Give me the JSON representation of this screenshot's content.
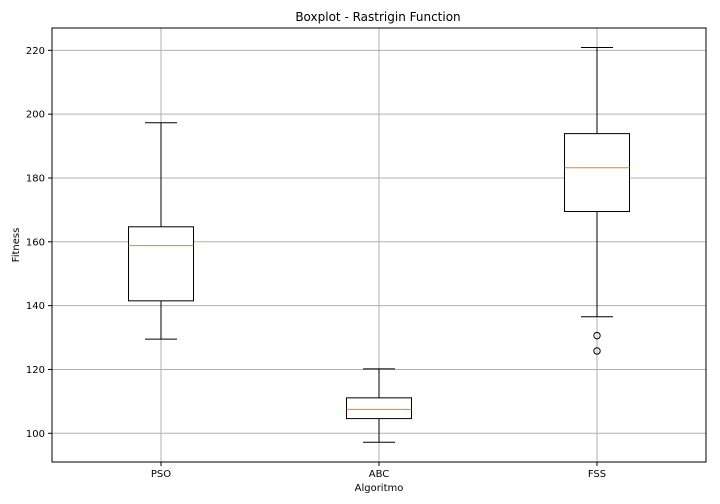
{
  "chart_data": {
    "type": "boxplot",
    "title": "Boxplot - Rastrigin Function",
    "xlabel": "Algoritmo",
    "ylabel": "Fitness",
    "categories": [
      "PSO",
      "ABC",
      "FSS"
    ],
    "ylim": [
      91,
      227
    ],
    "yticks": [
      100,
      120,
      140,
      160,
      180,
      200,
      220
    ],
    "ytick_labels": [
      "100",
      "120",
      "140",
      "160",
      "180",
      "200",
      "220"
    ],
    "grid": true,
    "box_color": "#000000",
    "median_color": "#ff7f0e",
    "grid_color": "#b0b0b0",
    "boxes": [
      {
        "name": "PSO",
        "whisker_low": 129.5,
        "q1": 141.5,
        "median": 158.8,
        "q3": 164.7,
        "whisker_high": 197.3,
        "outliers": []
      },
      {
        "name": "ABC",
        "whisker_low": 97.2,
        "q1": 104.6,
        "median": 107.5,
        "q3": 111.1,
        "whisker_high": 120.2,
        "outliers": []
      },
      {
        "name": "FSS",
        "whisker_low": 136.5,
        "q1": 169.5,
        "median": 183.2,
        "q3": 193.9,
        "whisker_high": 220.9,
        "outliers": [
          130.6,
          125.8
        ]
      }
    ]
  }
}
